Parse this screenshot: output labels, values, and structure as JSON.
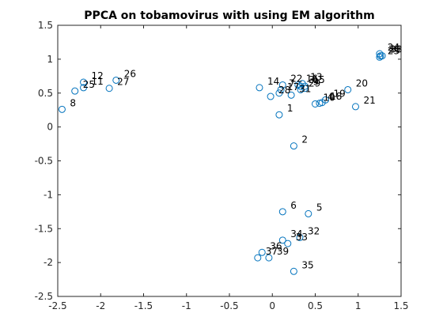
{
  "chart_data": {
    "type": "scatter",
    "title": "PPCA on tobamovirus with using EM algorithm",
    "xlabel": "",
    "ylabel": "",
    "xlim": [
      -2.5,
      1.5
    ],
    "ylim": [
      -2.5,
      1.5
    ],
    "xticks": [
      -2.5,
      -2,
      -1.5,
      -1,
      -0.5,
      0,
      0.5,
      1,
      1.5
    ],
    "yticks": [
      -2.5,
      -2,
      -1.5,
      -1,
      -0.5,
      0,
      0.5,
      1,
      1.5
    ],
    "xtick_labels": [
      "-2.5",
      "-2",
      "-1.5",
      "-1",
      "-0.5",
      "0",
      "0.5",
      "1",
      "1.5"
    ],
    "ytick_labels": [
      "-2.5",
      "-2",
      "-1.5",
      "-1",
      "-0.5",
      "0",
      "0.5",
      "1",
      "1.5"
    ],
    "grid": false,
    "marker": "open-circle",
    "marker_color": "#0072BD",
    "points": [
      {
        "label": "1",
        "x": 0.08,
        "y": 0.18
      },
      {
        "label": "2",
        "x": 0.25,
        "y": -0.28
      },
      {
        "label": "3",
        "x": 0.33,
        "y": 0.6
      },
      {
        "label": "4",
        "x": 0.55,
        "y": 0.35
      },
      {
        "label": "5",
        "x": 0.42,
        "y": -1.28
      },
      {
        "label": "6",
        "x": 0.12,
        "y": -1.25
      },
      {
        "label": "7",
        "x": 0.1,
        "y": 0.55
      },
      {
        "label": "8",
        "x": -2.45,
        "y": 0.26
      },
      {
        "label": "9",
        "x": 0.38,
        "y": 0.57
      },
      {
        "label": "10",
        "x": 0.5,
        "y": 0.34
      },
      {
        "label": "11",
        "x": -2.2,
        "y": 0.58
      },
      {
        "label": "12",
        "x": -2.2,
        "y": 0.66
      },
      {
        "label": "13",
        "x": 0.35,
        "y": 0.64
      },
      {
        "label": "14",
        "x": -0.15,
        "y": 0.58
      },
      {
        "label": "15",
        "x": 0.38,
        "y": 0.6
      },
      {
        "label": "16",
        "x": 0.3,
        "y": 0.62
      },
      {
        "label": "17",
        "x": 0.08,
        "y": 0.5
      },
      {
        "label": "18",
        "x": 0.58,
        "y": 0.36
      },
      {
        "label": "19",
        "x": 0.62,
        "y": 0.4
      },
      {
        "label": "20",
        "x": 0.88,
        "y": 0.55
      },
      {
        "label": "21",
        "x": 0.97,
        "y": 0.3
      },
      {
        "label": "22",
        "x": 0.12,
        "y": 0.62
      },
      {
        "label": "23",
        "x": 1.25,
        "y": 1.03
      },
      {
        "label": "24",
        "x": 1.25,
        "y": 1.08
      },
      {
        "label": "25",
        "x": -2.3,
        "y": 0.53
      },
      {
        "label": "26",
        "x": -1.82,
        "y": 0.69
      },
      {
        "label": "27",
        "x": -1.9,
        "y": 0.57
      },
      {
        "label": "28",
        "x": -0.02,
        "y": 0.45
      },
      {
        "label": "29",
        "x": 0.33,
        "y": 0.55
      },
      {
        "label": "30",
        "x": 1.26,
        "y": 1.05
      },
      {
        "label": "31",
        "x": 0.22,
        "y": 0.47
      },
      {
        "label": "32",
        "x": 0.32,
        "y": -1.63
      },
      {
        "label": "33",
        "x": 0.18,
        "y": -1.72
      },
      {
        "label": "34",
        "x": 0.12,
        "y": -1.67
      },
      {
        "label": "35",
        "x": 0.25,
        "y": -2.13
      },
      {
        "label": "36",
        "x": -0.12,
        "y": -1.85
      },
      {
        "label": "37",
        "x": -0.17,
        "y": -1.93
      },
      {
        "label": "38",
        "x": 1.28,
        "y": 1.05
      },
      {
        "label": "39",
        "x": -0.04,
        "y": -1.93
      }
    ]
  }
}
